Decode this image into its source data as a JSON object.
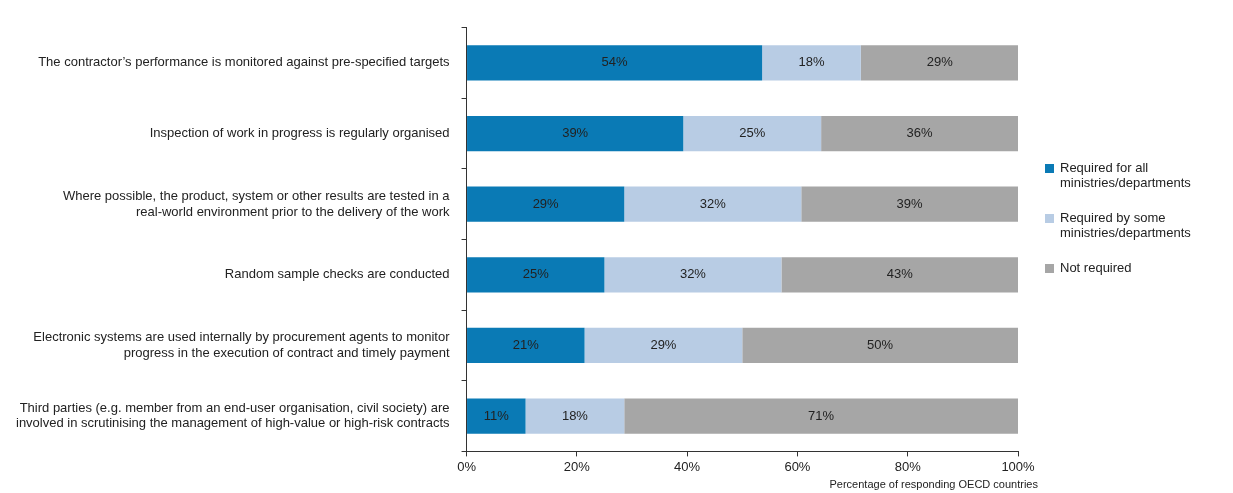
{
  "chart_data": {
    "type": "bar",
    "orientation": "horizontal",
    "stacked": true,
    "categories": [
      "The contractor’s performance is monitored against pre-specified targets",
      "Inspection of work in progress is regularly organised",
      "Where possible, the product, system or other results are tested in a real-world environment prior to the delivery of the work",
      "Random sample checks are conducted",
      "Electronic systems are used internally by procurement agents to monitor progress in the execution of contract and timely payment",
      "Third parties (e.g. member from an end-user organisation, civil society) are involved in scrutinising the management of high-value or high-risk contracts"
    ],
    "series": [
      {
        "name": "Required for all ministries/departments",
        "color": "#0a7ab5",
        "values": [
          53.6,
          39.3,
          28.6,
          25,
          21.4,
          10.7
        ],
        "value_labels": [
          "54%",
          "39%",
          "29%",
          "25%",
          "21%",
          "11%"
        ]
      },
      {
        "name": "Required by some ministries/departments",
        "color": "#b8cce4",
        "values": [
          17.9,
          25,
          32.1,
          32.1,
          28.6,
          17.9
        ],
        "value_labels": [
          "18%",
          "25%",
          "32%",
          "32%",
          "29%",
          "18%"
        ]
      },
      {
        "name": "Not required",
        "color": "#a6a6a6",
        "values": [
          28.6,
          35.7,
          39.3,
          42.9,
          50,
          71.4
        ],
        "value_labels": [
          "29%",
          "36%",
          "39%",
          "43%",
          "50%",
          "71%"
        ]
      }
    ],
    "xlim": [
      0,
      100
    ],
    "xticks": [
      {
        "value": 0,
        "label": "0%"
      },
      {
        "value": 20,
        "label": "20%"
      },
      {
        "value": 40,
        "label": "40%"
      },
      {
        "value": 60,
        "label": "60%"
      },
      {
        "value": 80,
        "label": "80%"
      },
      {
        "value": 100,
        "label": "100%"
      }
    ],
    "xlabel": "Percentage of responding OECD countries",
    "grid": false,
    "legend": "right"
  }
}
